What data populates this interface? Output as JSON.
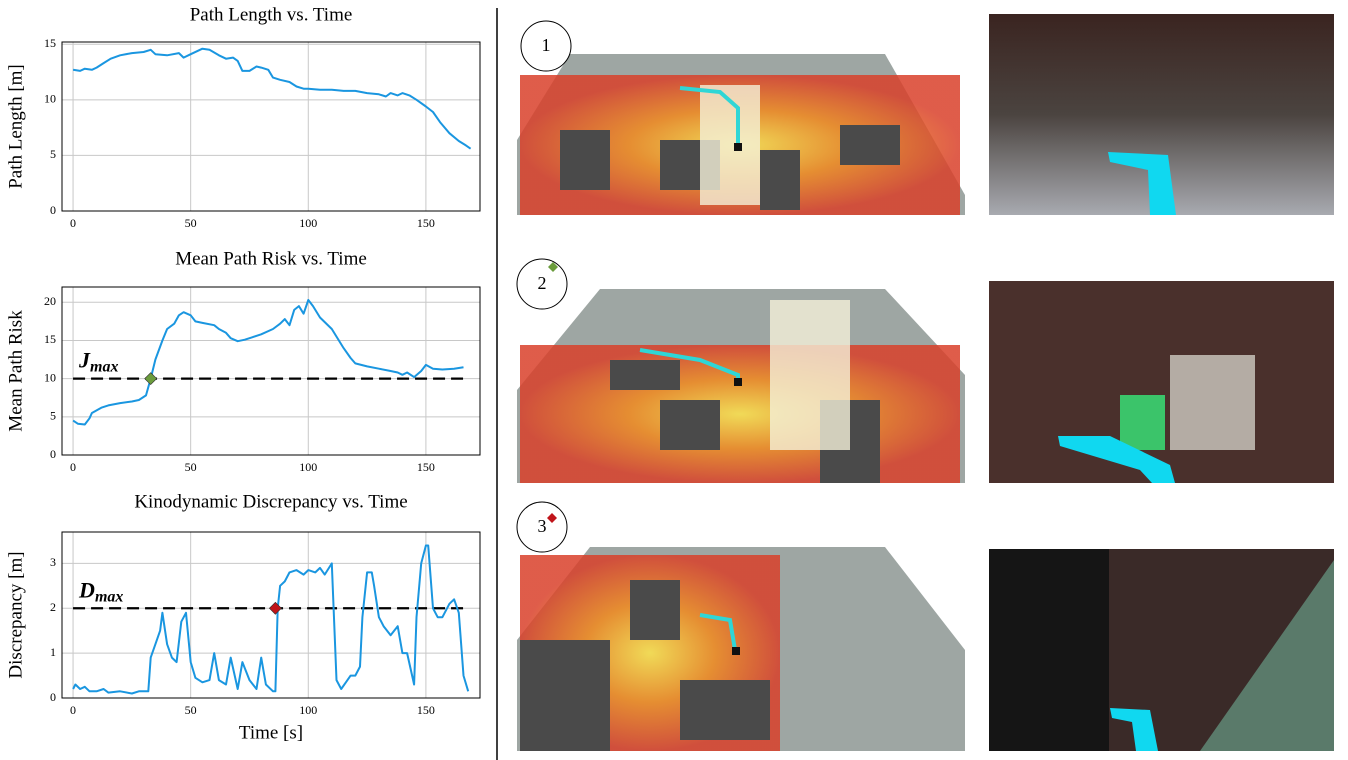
{
  "chart_data": [
    {
      "type": "line",
      "title": "Path Length vs. Time",
      "ylabel": "Path Length [m]",
      "xlim": [
        -4.7,
        173
      ],
      "ylim": [
        0,
        15.2
      ],
      "xticks": [
        0,
        50,
        100,
        150
      ],
      "yticks": [
        0,
        5,
        10,
        15
      ],
      "grid": true,
      "series": [
        {
          "color": "#1a96e0",
          "x": [
            0,
            3,
            5,
            8,
            10,
            13,
            16,
            20,
            25,
            30,
            33,
            35,
            40,
            45,
            47,
            50,
            55,
            58,
            62,
            65,
            68,
            70,
            72,
            75,
            78,
            80,
            83,
            85,
            88,
            92,
            95,
            98,
            100,
            105,
            110,
            115,
            120,
            125,
            130,
            133,
            135,
            138,
            140,
            143,
            146,
            150,
            153,
            156,
            160,
            164,
            167,
            169
          ],
          "values": [
            12.7,
            12.6,
            12.8,
            12.7,
            12.9,
            13.3,
            13.7,
            14.0,
            14.2,
            14.3,
            14.5,
            14.1,
            14.0,
            14.2,
            13.8,
            14.1,
            14.6,
            14.5,
            14.0,
            13.7,
            13.8,
            13.5,
            12.6,
            12.6,
            13.0,
            12.9,
            12.7,
            12.0,
            11.8,
            11.6,
            11.2,
            11.0,
            11.0,
            10.9,
            10.9,
            10.8,
            10.8,
            10.6,
            10.5,
            10.3,
            10.6,
            10.4,
            10.6,
            10.4,
            10.0,
            9.4,
            8.9,
            8.0,
            7.0,
            6.3,
            5.9,
            5.6
          ]
        }
      ]
    },
    {
      "type": "line",
      "title": "Mean Path Risk vs. Time",
      "ylabel": "Mean Path Risk",
      "xlim": [
        -4.7,
        173
      ],
      "ylim": [
        0,
        22
      ],
      "xticks": [
        0,
        50,
        100,
        150
      ],
      "yticks": [
        0,
        5,
        10,
        15,
        20
      ],
      "grid": true,
      "threshold": 10,
      "annotation": {
        "text": "J",
        "subscript": "max"
      },
      "marker": {
        "x": 33,
        "y": 10,
        "color": "#6b9c3c"
      },
      "series": [
        {
          "color": "#1a96e0",
          "x": [
            0,
            2,
            5,
            7,
            8,
            12,
            15,
            20,
            25,
            28,
            31,
            33,
            35,
            38,
            40,
            43,
            45,
            47,
            50,
            52,
            55,
            60,
            62,
            65,
            67,
            70,
            73,
            76,
            80,
            85,
            88,
            90,
            92,
            94,
            96,
            98,
            100,
            102,
            105,
            110,
            115,
            118,
            120,
            125,
            130,
            135,
            138,
            140,
            142,
            145,
            148,
            150,
            153,
            157,
            162,
            166
          ],
          "values": [
            4.5,
            4.1,
            4.0,
            4.8,
            5.5,
            6.2,
            6.5,
            6.8,
            7.0,
            7.2,
            7.8,
            10.0,
            12.5,
            15.0,
            16.5,
            17.2,
            18.3,
            18.7,
            18.3,
            17.5,
            17.3,
            17.0,
            16.5,
            16.0,
            15.3,
            14.9,
            15.1,
            15.4,
            15.8,
            16.5,
            17.2,
            17.8,
            17.0,
            19.0,
            19.5,
            18.5,
            20.3,
            19.5,
            18.0,
            16.5,
            14.0,
            12.7,
            12.0,
            11.6,
            11.3,
            11.0,
            10.8,
            10.5,
            10.8,
            10.2,
            11.0,
            11.8,
            11.3,
            11.2,
            11.3,
            11.5
          ]
        }
      ]
    },
    {
      "type": "line",
      "title": "Kinodynamic Discrepancy vs. Time",
      "ylabel": "Discrepancy [m]",
      "xlabel": "Time [s]",
      "xlim": [
        -4.7,
        173
      ],
      "ylim": [
        0,
        3.7
      ],
      "xticks": [
        0,
        50,
        100,
        150
      ],
      "yticks": [
        0,
        1,
        2,
        3
      ],
      "grid": true,
      "threshold": 2,
      "annotation": {
        "text": "D",
        "subscript": "max"
      },
      "marker": {
        "x": 86,
        "y": 2,
        "color": "#c0141a"
      },
      "series": [
        {
          "color": "#1a96e0",
          "x": [
            0,
            1,
            3,
            5,
            7,
            10,
            13,
            15,
            20,
            25,
            28,
            32,
            33,
            35,
            37,
            38,
            40,
            42,
            44,
            46,
            48,
            50,
            52,
            55,
            58,
            60,
            62,
            65,
            67,
            70,
            72,
            75,
            78,
            80,
            82,
            85,
            86,
            87,
            88,
            90,
            92,
            95,
            98,
            100,
            103,
            105,
            107,
            110,
            112,
            114,
            116,
            118,
            120,
            122,
            123,
            125,
            127,
            128,
            130,
            132,
            135,
            138,
            140,
            142,
            145,
            146,
            148,
            150,
            151,
            153,
            155,
            157,
            160,
            162,
            164,
            166,
            168
          ],
          "values": [
            0.2,
            0.3,
            0.2,
            0.25,
            0.15,
            0.15,
            0.2,
            0.12,
            0.15,
            0.1,
            0.15,
            0.15,
            0.9,
            1.2,
            1.5,
            1.9,
            1.2,
            0.9,
            0.8,
            1.7,
            1.9,
            0.8,
            0.45,
            0.35,
            0.4,
            1.0,
            0.4,
            0.3,
            0.9,
            0.2,
            0.8,
            0.4,
            0.2,
            0.9,
            0.3,
            0.15,
            0.15,
            2.0,
            2.5,
            2.6,
            2.8,
            2.85,
            2.75,
            2.85,
            2.8,
            2.9,
            2.75,
            3.0,
            0.4,
            0.2,
            0.35,
            0.5,
            0.5,
            0.7,
            1.8,
            2.8,
            2.8,
            2.5,
            1.8,
            1.6,
            1.4,
            1.6,
            1.0,
            1.0,
            0.3,
            1.8,
            3.0,
            3.4,
            3.4,
            2.0,
            1.8,
            1.8,
            2.1,
            2.2,
            1.9,
            0.5,
            0.15
          ]
        }
      ]
    }
  ],
  "panels": [
    {
      "label": "1"
    },
    {
      "label": "2"
    },
    {
      "label": "3"
    }
  ]
}
